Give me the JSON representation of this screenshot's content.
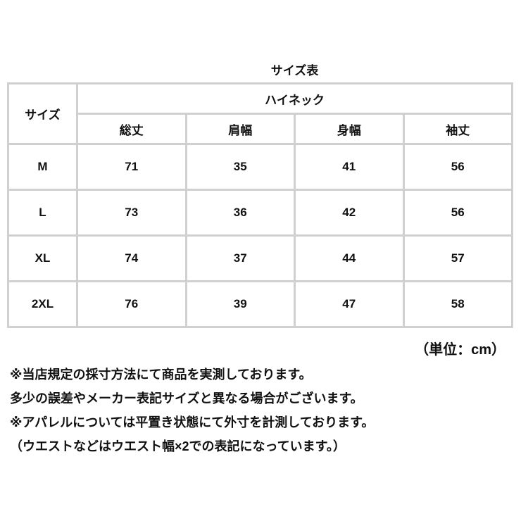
{
  "title": "サイズ表",
  "table": {
    "size_header": "サイズ",
    "group_header": "ハイネック",
    "columns": [
      "総丈",
      "肩幅",
      "身幅",
      "袖丈"
    ],
    "rows": [
      {
        "size": "M",
        "values": [
          "71",
          "35",
          "41",
          "56"
        ]
      },
      {
        "size": "L",
        "values": [
          "73",
          "36",
          "42",
          "56"
        ]
      },
      {
        "size": "XL",
        "values": [
          "74",
          "37",
          "44",
          "57"
        ]
      },
      {
        "size": "2XL",
        "values": [
          "76",
          "39",
          "47",
          "58"
        ]
      }
    ]
  },
  "unit": "（単位：cm）",
  "notes": [
    "※当店規定の採寸方法にて商品を実測しております。",
    "多少の誤差やメーカー表記サイズと異なる場合がございます。",
    "※アパレルについては平置き状態にて外寸を計測しております。",
    "（ウエストなどはウエスト幅×2での表記になっています。）"
  ]
}
